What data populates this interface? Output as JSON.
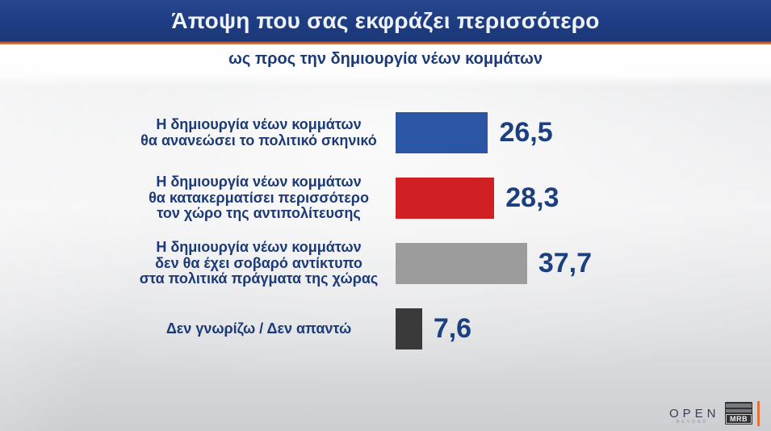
{
  "header": {
    "title": "Άποψη που σας εκφράζει περισσότερο",
    "subtitle": "ως προς την δημιουργία νέων κομμάτων"
  },
  "chart_data": {
    "type": "bar",
    "orientation": "horizontal",
    "title": "Άποψη που σας εκφράζει περισσότερο",
    "subtitle": "ως προς την δημιουργία νέων κομμάτων",
    "unit": "percent",
    "xlim": [
      0,
      45
    ],
    "grid": false,
    "legend": false,
    "categories": [
      "Η δημιουργία νέων κομμάτων θα ανανεώσει το πολιτικό σκηνικό",
      "Η δημιουργία νέων κομμάτων θα κατακερματίσει περισσότερο τον χώρο της αντιπολίτευσης",
      "Η δημιουργία νέων κομμάτων δεν θα έχει σοβαρό αντίκτυπο στα πολιτικά πράγματα της χώρας",
      "Δεν γνωρίζω / Δεν απαντώ"
    ],
    "label_lines": [
      [
        "Η δημιουργία νέων κομμάτων",
        "θα ανανεώσει το πολιτικό σκηνικό"
      ],
      [
        "Η δημιουργία νέων κομμάτων",
        "θα κατακερματίσει περισσότερο",
        "τον χώρο της αντιπολίτευσης"
      ],
      [
        "Η δημιουργία νέων κομμάτων",
        "δεν θα έχει σοβαρό αντίκτυπο",
        "στα πολιτικά πράγματα της χώρας"
      ],
      [
        "Δεν γνωρίζω / Δεν απαντώ"
      ]
    ],
    "values": [
      26.5,
      28.3,
      37.7,
      7.6
    ],
    "value_labels": [
      "26,5",
      "28,3",
      "37,7",
      "7,6"
    ],
    "bar_colors": [
      "#2b55a5",
      "#d02024",
      "#9c9c9c",
      "#3a3a3a"
    ]
  },
  "footer": {
    "open_logo_text": "OPEN",
    "open_logo_sub": "BEYOND",
    "mrb_logo_text": "MRB"
  },
  "colors": {
    "banner_bg": "#1e3c82",
    "banner_text": "#eef2fb",
    "accent_orange": "#e0743c",
    "subtitle_text": "#1c3a75",
    "label_text": "#1c3a75",
    "value_text": "#1c3f7f",
    "background_gray": "#e3e4e6"
  }
}
